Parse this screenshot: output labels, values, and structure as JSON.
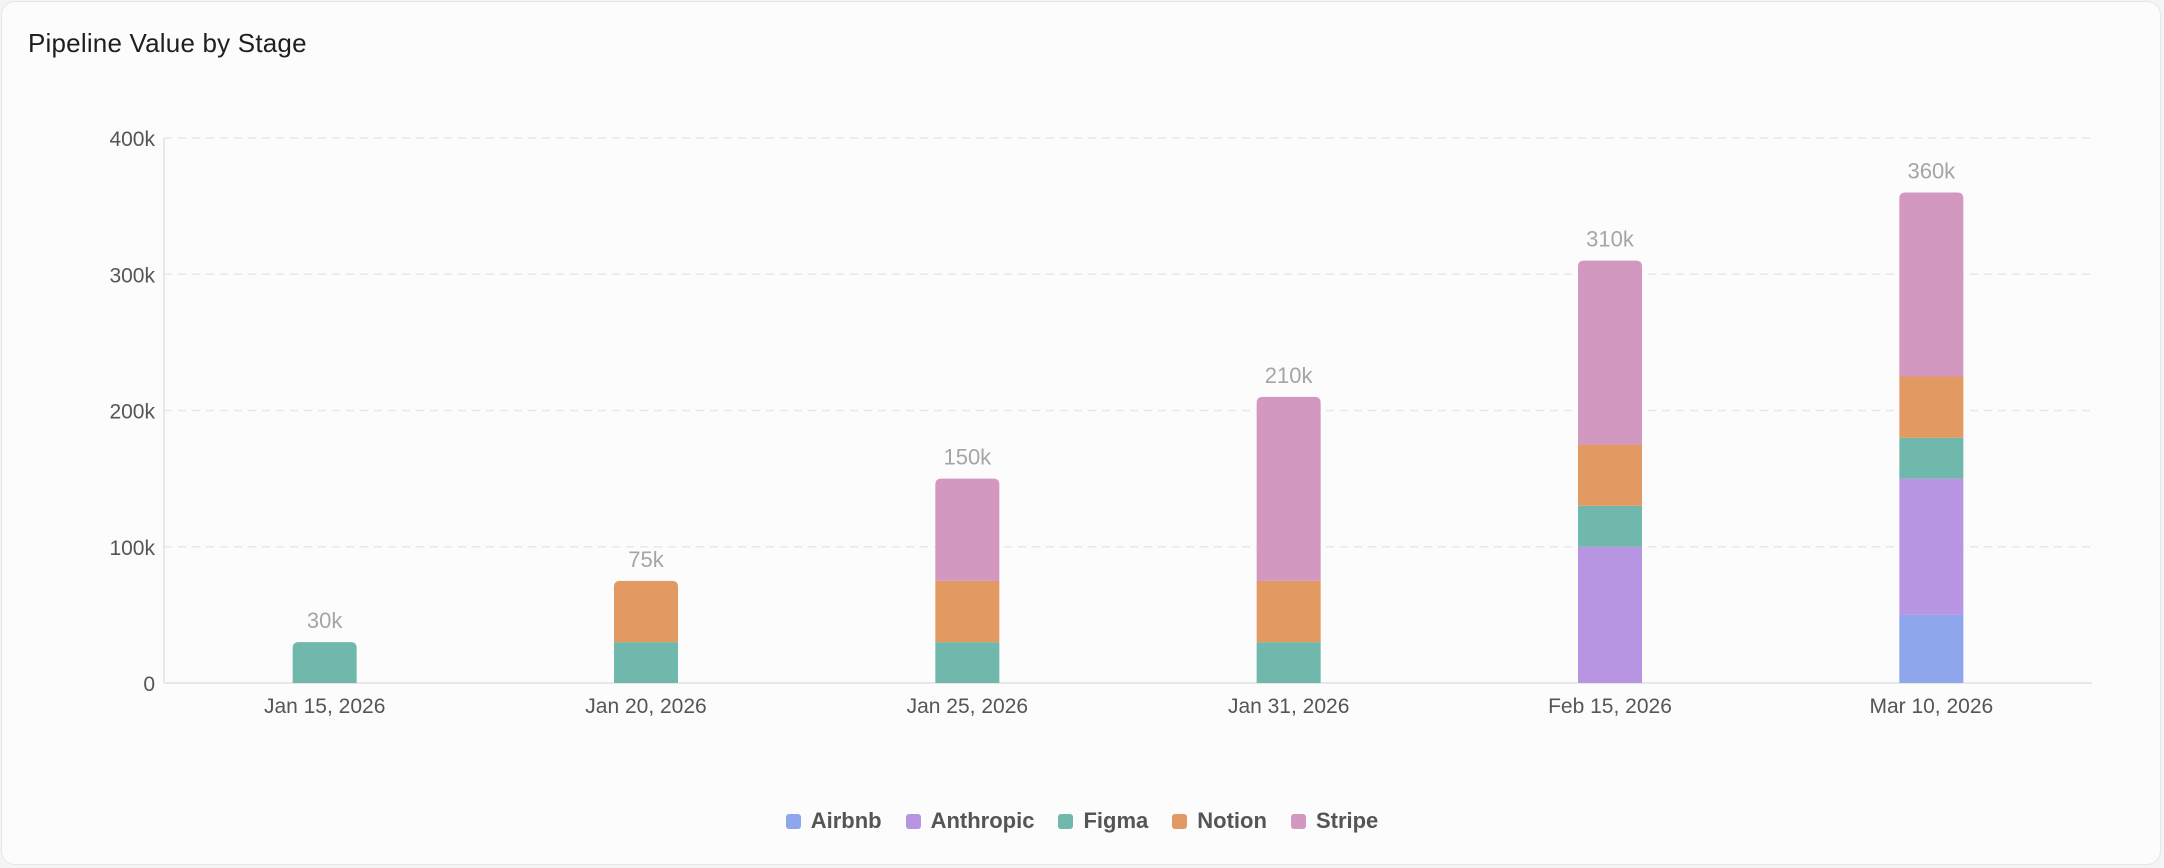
{
  "chart_data": {
    "type": "bar",
    "stacked": true,
    "title": "Pipeline Value by Stage",
    "categories": [
      "Jan 15, 2026",
      "Jan 20, 2026",
      "Jan 25, 2026",
      "Jan 31, 2026",
      "Feb 15, 2026",
      "Mar 10, 2026"
    ],
    "series": [
      {
        "name": "Airbnb",
        "color": "#8ea6eb",
        "values": [
          0,
          0,
          0,
          0,
          0,
          50000
        ]
      },
      {
        "name": "Anthropic",
        "color": "#b795e3",
        "values": [
          0,
          0,
          0,
          0,
          100000,
          100000
        ]
      },
      {
        "name": "Figma",
        "color": "#6fb8ab",
        "values": [
          30000,
          30000,
          30000,
          30000,
          30000,
          30000
        ]
      },
      {
        "name": "Notion",
        "color": "#e39a62",
        "values": [
          0,
          45000,
          45000,
          45000,
          45000,
          45000
        ]
      },
      {
        "name": "Stripe",
        "color": "#d398c0",
        "values": [
          0,
          0,
          75000,
          135000,
          135000,
          135000
        ]
      }
    ],
    "totals": [
      "30k",
      "75k",
      "150k",
      "210k",
      "310k",
      "360k"
    ],
    "ylim": [
      0,
      400000
    ],
    "yticks": [
      "0",
      "100k",
      "200k",
      "300k",
      "400k"
    ],
    "xlabel": "",
    "ylabel": "",
    "grid": true,
    "legend": "bottom-center"
  }
}
